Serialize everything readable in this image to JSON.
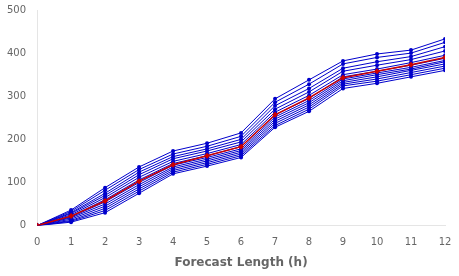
{
  "chart_data": {
    "type": "line",
    "xlabel": "Forecast Length (h)",
    "x": [
      0,
      1,
      2,
      3,
      4,
      5,
      6,
      7,
      8,
      9,
      10,
      11,
      12
    ],
    "xlim": [
      0,
      12
    ],
    "xticks": [
      0,
      1,
      2,
      3,
      4,
      5,
      6,
      7,
      8,
      9,
      10,
      11,
      12
    ],
    "ylim": [
      0,
      500
    ],
    "yticks": [
      0,
      100,
      200,
      300,
      400,
      500
    ],
    "grid": false,
    "series": [
      {
        "color": "#0000cc",
        "marker": "circle",
        "values": [
          0,
          8,
          30,
          75,
          120,
          138,
          158,
          228,
          265,
          318,
          330,
          345,
          360
        ]
      },
      {
        "color": "#0000cc",
        "marker": "circle",
        "values": [
          0,
          10,
          35,
          80,
          124,
          142,
          162,
          232,
          270,
          324,
          335,
          350,
          365
        ]
      },
      {
        "color": "#0000cc",
        "marker": "circle",
        "values": [
          0,
          12,
          40,
          85,
          128,
          146,
          166,
          237,
          275,
          328,
          340,
          355,
          370
        ]
      },
      {
        "color": "#0000cc",
        "marker": "circle",
        "values": [
          0,
          15,
          45,
          90,
          132,
          150,
          170,
          242,
          280,
          332,
          345,
          360,
          375
        ]
      },
      {
        "color": "#0000cc",
        "marker": "circle",
        "values": [
          0,
          18,
          50,
          95,
          136,
          154,
          174,
          247,
          285,
          336,
          350,
          363,
          380
        ]
      },
      {
        "color": "#0000cc",
        "marker": "circle",
        "values": [
          0,
          20,
          55,
          100,
          140,
          158,
          178,
          252,
          290,
          340,
          354,
          367,
          383
        ]
      },
      {
        "color": "#0000cc",
        "marker": "circle",
        "values": [
          0,
          22,
          60,
          106,
          144,
          162,
          183,
          257,
          295,
          345,
          358,
          372,
          388
        ]
      },
      {
        "color": "#0000cc",
        "marker": "circle",
        "values": [
          0,
          25,
          65,
          112,
          149,
          167,
          188,
          263,
          302,
          350,
          363,
          378,
          395
        ]
      },
      {
        "color": "#0000cc",
        "marker": "circle",
        "values": [
          0,
          28,
          70,
          118,
          155,
          173,
          194,
          270,
          310,
          358,
          372,
          385,
          405
        ]
      },
      {
        "color": "#0000cc",
        "marker": "circle",
        "values": [
          0,
          30,
          75,
          124,
          160,
          178,
          200,
          278,
          318,
          365,
          380,
          392,
          415
        ]
      },
      {
        "color": "#0000cc",
        "marker": "circle",
        "values": [
          0,
          33,
          82,
          130,
          166,
          184,
          207,
          286,
          328,
          375,
          390,
          400,
          425
        ]
      },
      {
        "color": "#0000cc",
        "marker": "circle",
        "values": [
          0,
          36,
          88,
          136,
          173,
          191,
          215,
          294,
          338,
          382,
          398,
          407,
          433
        ]
      },
      {
        "color": "#cc0000",
        "marker": "diamond",
        "values": [
          0,
          22,
          57,
          103,
          141,
          162,
          183,
          257,
          296,
          343,
          358,
          373,
          390
        ]
      }
    ]
  }
}
